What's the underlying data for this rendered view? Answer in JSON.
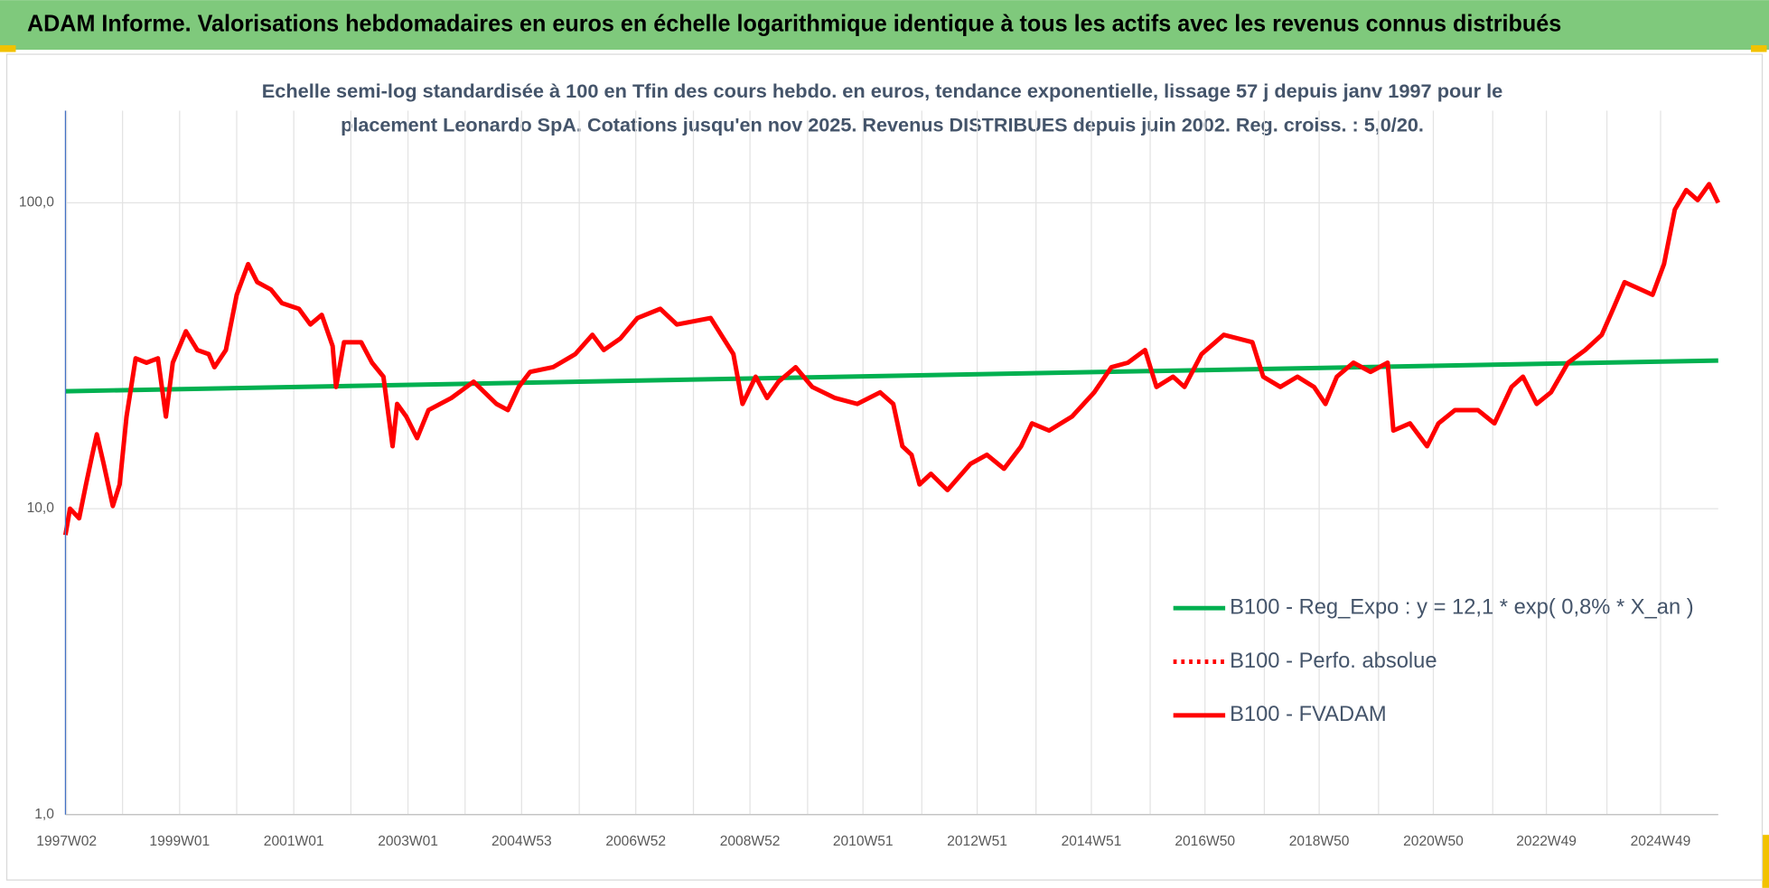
{
  "header": {
    "title": "ADAM Informe. Valorisations hebdomadaires en euros en échelle logarithmique identique à tous les actifs avec les revenus connus distribués"
  },
  "chart_data": {
    "type": "line",
    "subtitle": [
      "Echelle semi-log standardisée à 100 en Tfin des cours hebdo. en euros, tendance exponentielle, lissage 57 j depuis janv 1997 pour le",
      "placement Leonardo SpA. Cotations jusqu'en nov 2025. Revenus DISTRIBUES depuis juin 2002. Reg. croiss. : 5,0/20."
    ],
    "log_scale": true,
    "grid": true,
    "ylim": [
      1,
      200
    ],
    "yticks": [
      {
        "value": 1,
        "label": "1,0"
      },
      {
        "value": 10,
        "label": "10,0"
      },
      {
        "value": 100,
        "label": "100,0"
      }
    ],
    "xlim": [
      1997.0,
      2025.95
    ],
    "xticks": [
      {
        "value": 1997.02,
        "label": "1997W02"
      },
      {
        "value": 1999.0,
        "label": "1999W01"
      },
      {
        "value": 2001.0,
        "label": "2001W01"
      },
      {
        "value": 2003.0,
        "label": "2003W01"
      },
      {
        "value": 2004.99,
        "label": "2004W53"
      },
      {
        "value": 2006.99,
        "label": "2006W52"
      },
      {
        "value": 2008.99,
        "label": "2008W52"
      },
      {
        "value": 2010.97,
        "label": "2010W51"
      },
      {
        "value": 2012.97,
        "label": "2012W51"
      },
      {
        "value": 2014.97,
        "label": "2014W51"
      },
      {
        "value": 2016.96,
        "label": "2016W50"
      },
      {
        "value": 2018.96,
        "label": "2018W50"
      },
      {
        "value": 2020.96,
        "label": "2020W50"
      },
      {
        "value": 2022.94,
        "label": "2022W49"
      },
      {
        "value": 2024.94,
        "label": "2024W49"
      }
    ],
    "xgrid": [
      1998,
      2000,
      2002,
      2004,
      2006,
      2008,
      2010,
      2012,
      2014,
      2016,
      2018,
      2020,
      2022,
      2024
    ],
    "legend": "right",
    "series": [
      {
        "name": "B100 - Reg_Expo : y = 12,1 * exp( 0,8% *  X_an )",
        "color": "#00b050",
        "style": "solid",
        "x": [
          1997.0,
          2025.95
        ],
        "values": [
          24.2,
          30.5
        ]
      },
      {
        "name": "B100 - Perfo. absolue",
        "color": "#ff0000",
        "style": "dotted",
        "x": [],
        "values": []
      },
      {
        "name": "B100 - FVADAM",
        "color": "#ff0000",
        "style": "solid",
        "x": [
          1997.0,
          1997.08,
          1997.24,
          1997.36,
          1997.47,
          1997.55,
          1997.67,
          1997.83,
          1997.95,
          1998.07,
          1998.23,
          1998.42,
          1998.62,
          1998.76,
          1998.88,
          1999.11,
          1999.31,
          1999.51,
          1999.61,
          1999.81,
          2000.0,
          2000.2,
          2000.36,
          2000.6,
          2000.79,
          2001.09,
          2001.29,
          2001.49,
          2001.68,
          2001.74,
          2001.88,
          2002.18,
          2002.37,
          2002.57,
          2002.73,
          2002.81,
          2002.97,
          2003.16,
          2003.36,
          2003.76,
          2004.15,
          2004.55,
          2004.75,
          2004.94,
          2005.14,
          2005.54,
          2005.93,
          2006.23,
          2006.43,
          2006.72,
          2007.02,
          2007.42,
          2007.71,
          2008.01,
          2008.3,
          2008.7,
          2008.86,
          2009.09,
          2009.29,
          2009.49,
          2009.79,
          2010.08,
          2010.48,
          2010.87,
          2011.27,
          2011.5,
          2011.66,
          2011.82,
          2011.96,
          2012.16,
          2012.45,
          2012.85,
          2013.14,
          2013.44,
          2013.74,
          2013.93,
          2014.23,
          2014.63,
          2015.02,
          2015.32,
          2015.61,
          2015.91,
          2016.11,
          2016.4,
          2016.6,
          2016.9,
          2017.29,
          2017.79,
          2017.98,
          2018.28,
          2018.58,
          2018.87,
          2019.07,
          2019.27,
          2019.56,
          2019.86,
          2020.16,
          2020.26,
          2020.55,
          2020.85,
          2021.05,
          2021.34,
          2021.74,
          2022.03,
          2022.33,
          2022.53,
          2022.77,
          2023.02,
          2023.32,
          2023.62,
          2023.91,
          2024.11,
          2024.31,
          2024.6,
          2024.8,
          2025.0,
          2025.19,
          2025.39,
          2025.59,
          2025.79,
          2025.95
        ],
        "values": [
          8.2,
          10,
          9.3,
          12,
          15,
          17.5,
          14,
          10.2,
          12,
          20,
          31,
          30,
          31,
          20,
          30,
          38,
          33,
          32,
          29,
          33,
          50,
          63,
          55,
          52,
          47,
          45,
          40,
          43,
          34,
          25,
          35,
          35,
          30,
          27,
          16,
          22,
          20,
          17,
          21,
          23,
          26,
          22,
          21,
          25,
          28,
          29,
          32,
          37,
          33,
          36,
          42,
          45,
          40,
          41,
          42,
          32,
          22,
          27,
          23,
          26,
          29,
          25,
          23,
          22,
          24,
          22,
          16,
          15,
          12,
          13,
          11.5,
          14,
          15,
          13.5,
          16,
          19,
          18,
          20,
          24,
          29,
          30,
          33,
          25,
          27,
          25,
          32,
          37,
          35,
          27,
          25,
          27,
          25,
          22,
          27,
          30,
          28,
          30,
          18,
          19,
          16,
          19,
          21,
          21,
          19,
          25,
          27,
          22,
          24,
          30,
          33,
          37,
          45,
          55,
          52,
          50,
          63,
          95,
          110,
          102,
          115,
          100
        ]
      }
    ]
  }
}
